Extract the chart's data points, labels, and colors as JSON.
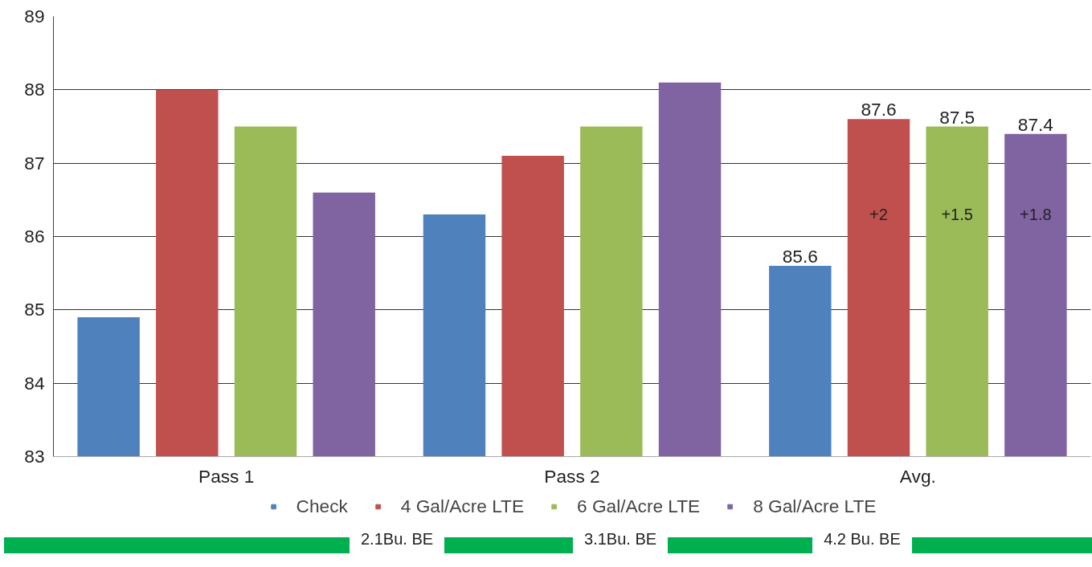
{
  "chart_data": {
    "type": "bar",
    "categories": [
      "Pass 1",
      "Pass 2",
      "Avg."
    ],
    "series": [
      {
        "name": "Check",
        "color": "#4f81bd",
        "values": [
          84.9,
          86.3,
          85.6
        ],
        "value_labels": [
          null,
          null,
          "85.6"
        ]
      },
      {
        "name": "4 Gal/Acre LTE",
        "color": "#c0504d",
        "values": [
          88.0,
          87.1,
          87.6
        ],
        "value_labels": [
          null,
          null,
          "87.6"
        ]
      },
      {
        "name": "6 Gal/Acre LTE",
        "color": "#9bbb59",
        "values": [
          87.5,
          87.5,
          87.5
        ],
        "value_labels": [
          null,
          null,
          "87.5"
        ]
      },
      {
        "name": "8 Gal/Acre LTE",
        "color": "#8064a2",
        "values": [
          86.6,
          88.1,
          87.4
        ],
        "value_labels": [
          null,
          null,
          "87.4"
        ]
      }
    ],
    "ylim": [
      83,
      89
    ],
    "yticks": [
      83,
      84,
      85,
      86,
      87,
      88,
      89
    ],
    "grid": "y",
    "legend": "bottom",
    "annotations": [
      "+2",
      "+1.5",
      "+1.8",
      "2.1Bu. BE",
      "3.1Bu. BE",
      "4.2 Bu. BE"
    ]
  }
}
